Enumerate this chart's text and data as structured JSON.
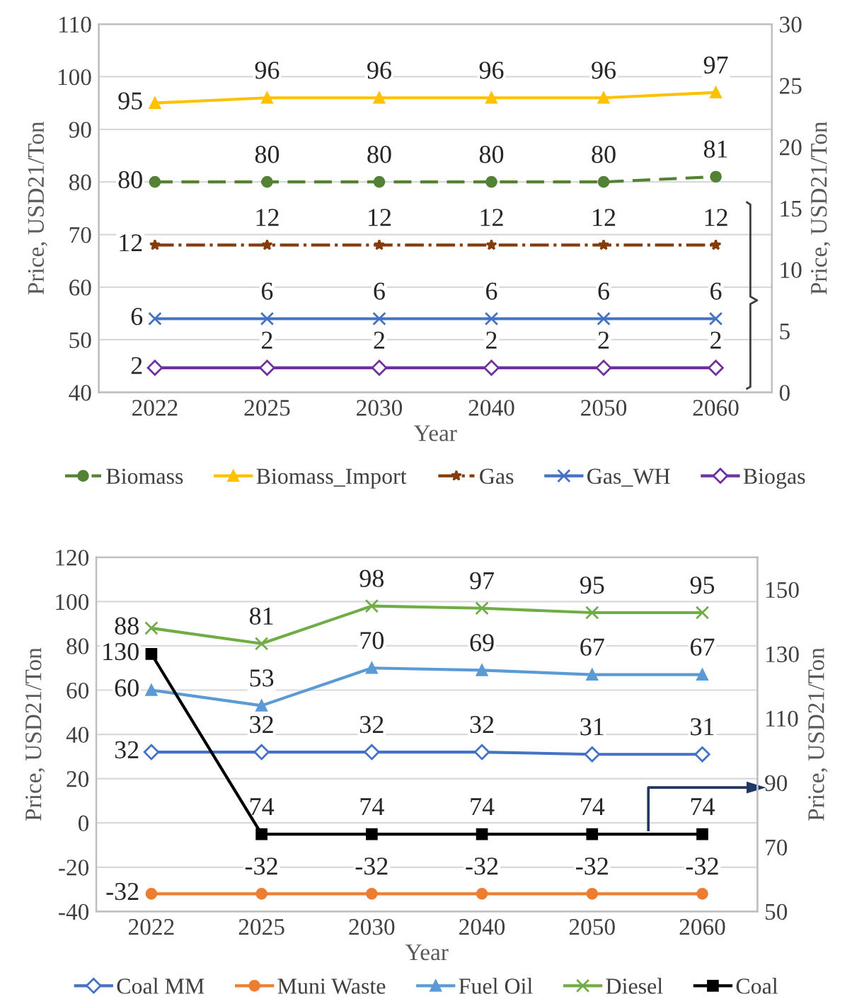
{
  "chart_data": [
    {
      "type": "line",
      "xlabel": "Year",
      "ylabel": "Price, USD21/Ton",
      "y2label": "Price, USD21/Ton",
      "categories": [
        "2022",
        "2025",
        "2030",
        "2040",
        "2050",
        "2060"
      ],
      "ylim": [
        40,
        110
      ],
      "yticks": [
        40,
        50,
        60,
        70,
        80,
        90,
        100,
        110
      ],
      "y2lim": [
        0,
        30
      ],
      "y2ticks": [
        0,
        5,
        10,
        15,
        20,
        25,
        30
      ],
      "grid": "y",
      "legend": "bottom",
      "data_labels": true,
      "series": [
        {
          "name": "Biomass",
          "color": "#548235",
          "marker": "circle",
          "line_style": "dashed",
          "values": [
            80,
            80,
            80,
            80,
            80,
            81
          ]
        },
        {
          "name": "Biomass_Import",
          "color": "#ffc000",
          "marker": "triangle",
          "line_style": "solid",
          "values": [
            95,
            96,
            96,
            96,
            96,
            97
          ]
        },
        {
          "name": "Gas",
          "color": "#843c0c",
          "marker": "star",
          "line_style": "dashdot",
          "axis": "y2",
          "values": [
            12,
            12,
            12,
            12,
            12,
            12
          ]
        },
        {
          "name": "Gas_WH",
          "color": "#4472c4",
          "marker": "cross",
          "line_style": "solid",
          "axis": "y2",
          "values": [
            6,
            6,
            6,
            6,
            6,
            6
          ]
        },
        {
          "name": "Biogas",
          "color": "#7030a0",
          "marker": "diamond",
          "line_style": "solid",
          "axis": "y2",
          "values": [
            2,
            2,
            2,
            2,
            2,
            2
          ]
        }
      ]
    },
    {
      "type": "line",
      "xlabel": "Year",
      "ylabel": "Price, USD21/Ton",
      "y2label": "Price, USD21/Ton",
      "categories": [
        "2022",
        "2025",
        "2030",
        "2040",
        "2050",
        "2060"
      ],
      "ylim": [
        -40,
        120
      ],
      "yticks": [
        {
          "value": -40,
          "label": "-40"
        },
        {
          "value": -20,
          "label": "-20"
        },
        0,
        20,
        40,
        60,
        80,
        100,
        120
      ],
      "y2lim": [
        50,
        160
      ],
      "y2ticks": [
        50,
        70,
        90,
        110,
        130,
        150
      ],
      "grid": "y",
      "legend": "bottom",
      "data_labels": true,
      "series": [
        {
          "name": "Coal MM",
          "color": "#4472c4",
          "marker": "diamond",
          "line_style": "solid",
          "values": [
            32,
            32,
            32,
            32,
            31,
            31
          ]
        },
        {
          "name": "Muni Waste",
          "color": "#ed7d31",
          "marker": "circle",
          "line_style": "solid",
          "values": [
            -32,
            -32,
            -32,
            -32,
            -32,
            -32
          ]
        },
        {
          "name": "Fuel Oil",
          "color": "#5b9bd5",
          "marker": "triangle",
          "line_style": "solid",
          "values": [
            60,
            53,
            70,
            69,
            67,
            67
          ]
        },
        {
          "name": "Diesel",
          "color": "#70ad47",
          "marker": "cross",
          "line_style": "solid",
          "values": [
            88,
            81,
            98,
            97,
            95,
            95
          ]
        },
        {
          "name": "Coal",
          "color": "#000000",
          "marker": "square",
          "line_style": "solid",
          "axis": "y2",
          "values": [
            130,
            74,
            74,
            74,
            74,
            74
          ]
        }
      ]
    }
  ]
}
